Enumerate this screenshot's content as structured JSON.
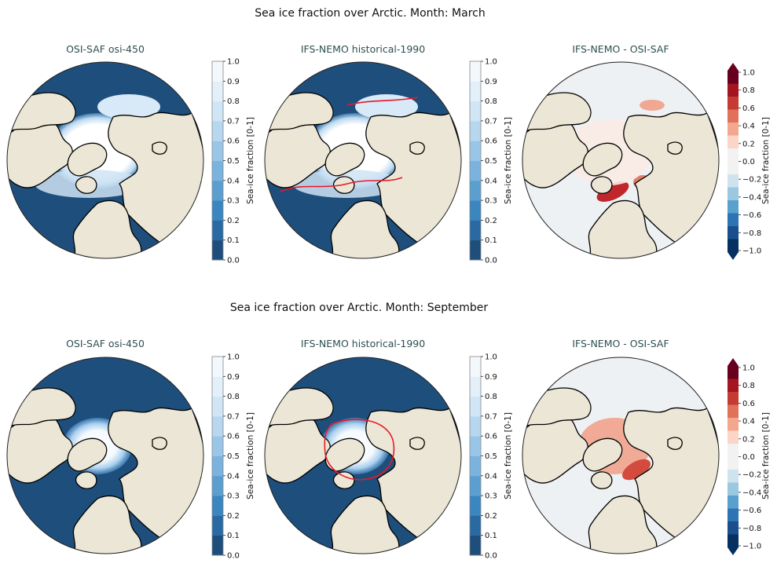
{
  "figure": {
    "colors": {
      "ocean_open": "#1e4e7c",
      "land": "#ebe6d5",
      "ice": "#ffffff",
      "ice_edge": "#e8182b",
      "coast": "#000000",
      "diff_zero": "#eef1f3",
      "title_color": "#2f4f4f"
    }
  },
  "chart_data": [
    {
      "row_title": "Sea ice fraction over Arctic. Month: March",
      "panels": [
        {
          "title": "OSI-SAF osi-450",
          "type": "heatmap",
          "kind": "observation",
          "month": "March",
          "colorbar": {
            "label": "Sea-ice fraction [0-1]",
            "ticks": [
              "0.0",
              "0.1",
              "0.2",
              "0.3",
              "0.4",
              "0.5",
              "0.6",
              "0.7",
              "0.8",
              "0.9",
              "1.0"
            ],
            "range": [
              0,
              1
            ]
          }
        },
        {
          "title": "IFS-NEMO historical-1990",
          "type": "heatmap",
          "kind": "model",
          "month": "March",
          "colorbar": {
            "label": "Sea-ice fraction [0-1]",
            "ticks": [
              "0.0",
              "0.1",
              "0.2",
              "0.3",
              "0.4",
              "0.5",
              "0.6",
              "0.7",
              "0.8",
              "0.9",
              "1.0"
            ],
            "range": [
              0,
              1
            ]
          }
        },
        {
          "title": "IFS-NEMO -  OSI-SAF",
          "type": "heatmap",
          "kind": "difference",
          "month": "March",
          "colorbar": {
            "label": "Sea-ice fraction [0-1]",
            "ticks": [
              "1.0",
              "0.8",
              "0.6",
              "0.4",
              "0.2",
              "0.0",
              "−0.2",
              "−0.4",
              "−0.6",
              "−0.8",
              "−1.0"
            ],
            "range": [
              -1,
              1
            ],
            "extend": "both"
          }
        }
      ]
    },
    {
      "row_title": "Sea ice fraction over Arctic. Month: September",
      "panels": [
        {
          "title": "OSI-SAF osi-450",
          "type": "heatmap",
          "kind": "observation",
          "month": "September",
          "colorbar": {
            "label": "Sea-ice fraction [0-1]",
            "ticks": [
              "0.0",
              "0.1",
              "0.2",
              "0.3",
              "0.4",
              "0.5",
              "0.6",
              "0.7",
              "0.8",
              "0.9",
              "1.0"
            ],
            "range": [
              0,
              1
            ]
          }
        },
        {
          "title": "IFS-NEMO historical-1990",
          "type": "heatmap",
          "kind": "model",
          "month": "September",
          "colorbar": {
            "label": "Sea-ice fraction [0-1]",
            "ticks": [
              "0.0",
              "0.1",
              "0.2",
              "0.3",
              "0.4",
              "0.5",
              "0.6",
              "0.7",
              "0.8",
              "0.9",
              "1.0"
            ],
            "range": [
              0,
              1
            ]
          }
        },
        {
          "title": "IFS-NEMO -  OSI-SAF",
          "type": "heatmap",
          "kind": "difference",
          "month": "September",
          "colorbar": {
            "label": "Sea-ice fraction [0-1]",
            "ticks": [
              "1.0",
              "0.8",
              "0.6",
              "0.4",
              "0.2",
              "0.0",
              "−0.2",
              "−0.4",
              "−0.6",
              "−0.8",
              "−1.0"
            ],
            "range": [
              -1,
              1
            ],
            "extend": "both"
          }
        }
      ]
    }
  ]
}
